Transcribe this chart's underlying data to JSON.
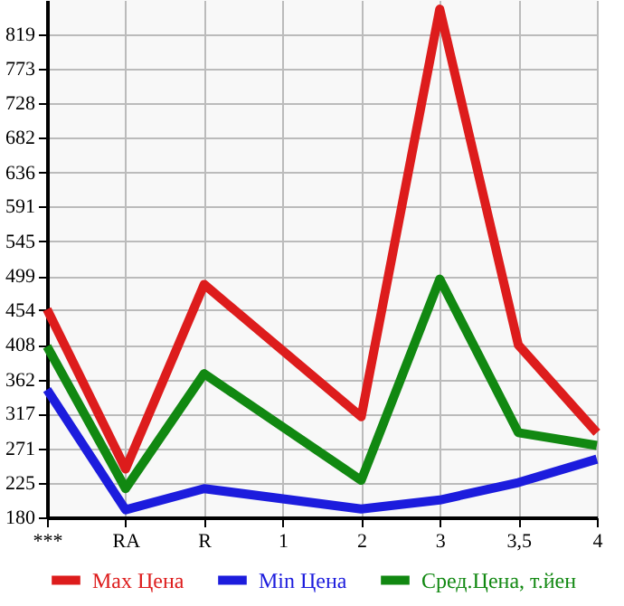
{
  "chart_data": {
    "type": "line",
    "categories": [
      "***",
      "RA",
      "R",
      "1",
      "2",
      "3",
      "3,5",
      "4"
    ],
    "series": [
      {
        "name": "Max Цена",
        "color": "#dd1c1c",
        "values": [
          455,
          244,
          488,
          null,
          313,
          852,
          408,
          292
        ]
      },
      {
        "name": "Min Цена",
        "color": "#1c1cdd",
        "values": [
          349,
          190,
          218,
          null,
          191,
          203,
          226,
          257
        ]
      },
      {
        "name": "Сред.Цена, т.йен",
        "color": "#118811",
        "values": [
          406,
          218,
          370,
          null,
          229,
          495,
          292,
          275
        ]
      }
    ],
    "ylim": [
      180,
      864
    ],
    "yticks": [
      180,
      225,
      271,
      317,
      362,
      408,
      454,
      499,
      545,
      591,
      636,
      682,
      728,
      773,
      819
    ],
    "grid": true,
    "legend": "bottom",
    "marker": "none",
    "line_style": "solid"
  }
}
